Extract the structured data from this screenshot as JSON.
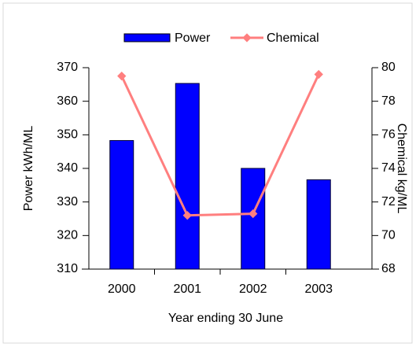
{
  "chart_data": {
    "type": "bar-line",
    "categories": [
      "2000",
      "2001",
      "2002",
      "2003"
    ],
    "series": [
      {
        "name": "Power",
        "color": "#0000ff",
        "type": "bar",
        "values": [
          348.3,
          365.3,
          340,
          336.6
        ]
      },
      {
        "name": "Chemical",
        "color": "#ff7f7f",
        "type": "line",
        "axis": "y2",
        "values": [
          79.5,
          71.2,
          71.3,
          79.6
        ]
      }
    ],
    "ylabel": "Power kWh/ML",
    "y2label": "Chemical kg/ML",
    "xlabel": "Year ending 30 June",
    "ylim": [
      310,
      370
    ],
    "yticks": [
      310,
      320,
      330,
      340,
      350,
      360,
      370
    ],
    "y2lim": [
      68,
      80
    ],
    "y2ticks": [
      68,
      70,
      72,
      74,
      76,
      78,
      80
    ],
    "legend": "top"
  }
}
